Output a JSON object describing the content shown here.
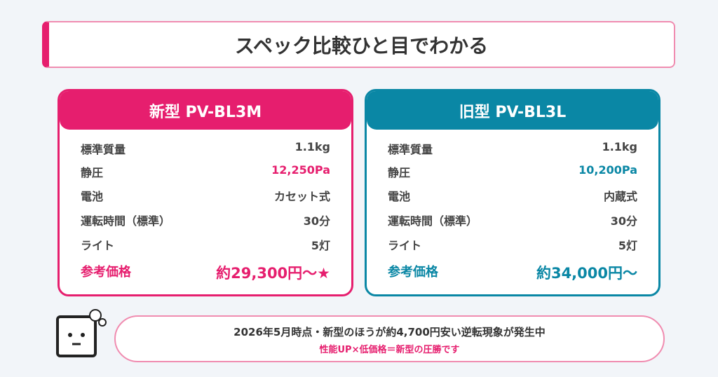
{
  "header": {
    "title": "スペック比較ひと目でわかる"
  },
  "cards": [
    {
      "title": "新型 PV-BL3M",
      "rows": [
        [
          "標準質量",
          "1.1kg"
        ],
        [
          "静圧",
          "12,250Pa"
        ],
        [
          "電池",
          "カセット式"
        ],
        [
          "運転時間（標準）",
          "30分"
        ],
        [
          "ライト",
          "5灯"
        ]
      ],
      "price_label": "参考価格",
      "price": "約29,300円〜★"
    },
    {
      "title": "旧型 PV-BL3L",
      "rows": [
        [
          "標準質量",
          "1.1kg"
        ],
        [
          "静圧",
          "10,200Pa"
        ],
        [
          "電池",
          "内蔵式"
        ],
        [
          "運転時間（標準）",
          "30分"
        ],
        [
          "ライト",
          "5灯"
        ]
      ],
      "price_label": "参考価格",
      "price": "約34,000円〜"
    }
  ],
  "note": {
    "line1": "2026年5月時点・新型のほうが約4,700円安い逆転現象が発生中",
    "line2": "性能UP×低価格＝新型の圧勝です"
  }
}
